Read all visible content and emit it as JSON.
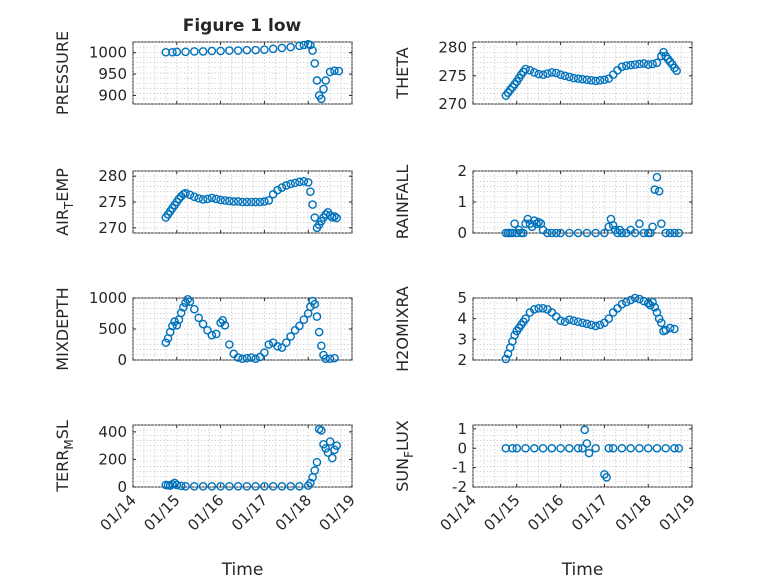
{
  "figure": {
    "title": "Figure 1 low",
    "marker_color": "#0072bd",
    "xlabel": "Time",
    "x_ticks": [
      {
        "value": 0,
        "label": "01/14"
      },
      {
        "value": 1,
        "label": "01/15"
      },
      {
        "value": 2,
        "label": "01/16"
      },
      {
        "value": 3,
        "label": "01/17"
      },
      {
        "value": 4,
        "label": "01/18"
      },
      {
        "value": 5,
        "label": "01/19"
      }
    ],
    "x_units": "days since 01/14",
    "xlim": [
      0,
      5
    ]
  },
  "chart_data": [
    {
      "type": "scatter",
      "id": "pressure",
      "ylabel": "PRESSURE",
      "ylim": [
        880,
        1025
      ],
      "yticks": [
        900,
        950,
        1000
      ],
      "ytick_labels": [
        "900",
        "950",
        "1000"
      ],
      "series": [
        {
          "name": "PRESSURE",
          "x": [
            0.75,
            0.9,
            1.0,
            1.2,
            1.4,
            1.6,
            1.8,
            2.0,
            2.2,
            2.4,
            2.6,
            2.8,
            3.0,
            3.2,
            3.4,
            3.6,
            3.8,
            3.9,
            4.0,
            4.05,
            4.1,
            4.15,
            4.2,
            4.25,
            4.3,
            4.35,
            4.4,
            4.5,
            4.6,
            4.7
          ],
          "y": [
            1001,
            1001,
            1002,
            1002,
            1003,
            1003,
            1004,
            1004,
            1005,
            1005,
            1006,
            1006,
            1007,
            1009,
            1011,
            1013,
            1016,
            1018,
            1020,
            1018,
            1005,
            975,
            935,
            900,
            892,
            915,
            935,
            955,
            958,
            957
          ]
        }
      ]
    },
    {
      "type": "scatter",
      "id": "theta",
      "ylabel": "THETA",
      "ylim": [
        270,
        281
      ],
      "yticks": [
        270,
        275,
        280
      ],
      "ytick_labels": [
        "270",
        "275",
        "280"
      ],
      "series": [
        {
          "name": "THETA",
          "x": [
            0.75,
            0.8,
            0.85,
            0.9,
            0.95,
            1.0,
            1.05,
            1.1,
            1.15,
            1.2,
            1.3,
            1.4,
            1.5,
            1.6,
            1.7,
            1.8,
            1.9,
            2.0,
            2.1,
            2.2,
            2.3,
            2.4,
            2.5,
            2.6,
            2.7,
            2.8,
            2.9,
            3.0,
            3.1,
            3.2,
            3.3,
            3.4,
            3.5,
            3.6,
            3.7,
            3.8,
            3.9,
            4.0,
            4.1,
            4.2,
            4.3,
            4.35,
            4.4,
            4.45,
            4.5,
            4.55,
            4.6,
            4.65
          ],
          "y": [
            271.5,
            272,
            272.5,
            273,
            273.5,
            274,
            274.6,
            275.2,
            275.7,
            276.2,
            276,
            275.6,
            275.3,
            275.2,
            275.4,
            275.6,
            275.5,
            275.2,
            275,
            274.8,
            274.6,
            274.5,
            274.4,
            274.3,
            274.2,
            274.1,
            274.2,
            274.3,
            274.5,
            275.2,
            276,
            276.6,
            276.8,
            276.9,
            277,
            277.1,
            277.2,
            277,
            277.1,
            277.3,
            278.5,
            279.2,
            278.5,
            278,
            277.5,
            277,
            276.4,
            275.9
          ]
        }
      ]
    },
    {
      "type": "scatter",
      "id": "air_temp",
      "ylabel": "AIR_TEMP",
      "ylim": [
        269,
        281
      ],
      "yticks": [
        270,
        275,
        280
      ],
      "ytick_labels": [
        "270",
        "275",
        "280"
      ],
      "series": [
        {
          "name": "AIR_TEMP",
          "x": [
            0.75,
            0.8,
            0.85,
            0.9,
            0.95,
            1.0,
            1.05,
            1.1,
            1.15,
            1.2,
            1.3,
            1.4,
            1.5,
            1.6,
            1.7,
            1.8,
            1.9,
            2.0,
            2.1,
            2.2,
            2.3,
            2.4,
            2.5,
            2.6,
            2.7,
            2.8,
            2.9,
            3.0,
            3.1,
            3.2,
            3.3,
            3.4,
            3.5,
            3.6,
            3.7,
            3.8,
            3.9,
            4.0,
            4.05,
            4.1,
            4.15,
            4.2,
            4.25,
            4.3,
            4.35,
            4.4,
            4.45,
            4.5,
            4.55,
            4.6,
            4.65
          ],
          "y": [
            272,
            272.6,
            273.2,
            273.8,
            274.4,
            275,
            275.6,
            276.1,
            276.5,
            276.7,
            276.4,
            276,
            275.7,
            275.5,
            275.6,
            275.8,
            275.6,
            275.4,
            275.3,
            275.2,
            275.1,
            275.1,
            275,
            275,
            275,
            275,
            275,
            275.1,
            275.3,
            276.5,
            277.3,
            277.8,
            278.2,
            278.5,
            278.7,
            278.9,
            279,
            278.8,
            277,
            274.5,
            272,
            270,
            270.6,
            271.3,
            272,
            272.6,
            273,
            272.4,
            272,
            272.2,
            271.9
          ]
        }
      ]
    },
    {
      "type": "scatter",
      "id": "rainfall",
      "ylabel": "RAINFALL",
      "ylim": [
        0,
        2
      ],
      "yticks": [
        0,
        1,
        2
      ],
      "ytick_labels": [
        "0",
        "1",
        "2"
      ],
      "series": [
        {
          "name": "RAINFALL",
          "x": [
            0.75,
            0.8,
            0.85,
            0.9,
            0.95,
            1.0,
            1.05,
            1.1,
            1.15,
            1.2,
            1.25,
            1.3,
            1.35,
            1.4,
            1.45,
            1.5,
            1.55,
            1.6,
            1.7,
            1.8,
            1.9,
            2.0,
            2.2,
            2.4,
            2.6,
            2.8,
            3.0,
            3.1,
            3.15,
            3.2,
            3.25,
            3.3,
            3.35,
            3.4,
            3.5,
            3.6,
            3.7,
            3.8,
            3.9,
            4.0,
            4.05,
            4.1,
            4.15,
            4.2,
            4.25,
            4.3,
            4.4,
            4.5,
            4.6,
            4.7
          ],
          "y": [
            0,
            0,
            0,
            0,
            0.3,
            0,
            0.1,
            0,
            0,
            0.3,
            0.45,
            0.3,
            0.2,
            0.4,
            0.3,
            0.35,
            0.3,
            0.1,
            0,
            0,
            0,
            0,
            0,
            0,
            0,
            0,
            0,
            0.2,
            0.45,
            0.25,
            0.1,
            0,
            0.1,
            0,
            0,
            0.1,
            0,
            0.3,
            0,
            0,
            0,
            0.2,
            1.4,
            1.8,
            1.35,
            0.3,
            0,
            0,
            0,
            0
          ]
        }
      ]
    },
    {
      "type": "scatter",
      "id": "mixdepth",
      "ylabel": "MIXDEPTH",
      "ylim": [
        0,
        1000
      ],
      "yticks": [
        0,
        500,
        1000
      ],
      "ytick_labels": [
        "0",
        "500",
        "1000"
      ],
      "series": [
        {
          "name": "MIXDEPTH",
          "x": [
            0.75,
            0.8,
            0.85,
            0.9,
            0.95,
            1.0,
            1.05,
            1.1,
            1.15,
            1.2,
            1.25,
            1.3,
            1.4,
            1.5,
            1.6,
            1.7,
            1.8,
            1.9,
            2.0,
            2.05,
            2.1,
            2.2,
            2.3,
            2.4,
            2.5,
            2.6,
            2.7,
            2.8,
            2.9,
            3.0,
            3.1,
            3.2,
            3.3,
            3.4,
            3.5,
            3.6,
            3.7,
            3.8,
            3.9,
            4.0,
            4.05,
            4.1,
            4.15,
            4.2,
            4.25,
            4.3,
            4.35,
            4.4,
            4.5,
            4.6
          ],
          "y": [
            280,
            350,
            450,
            550,
            620,
            560,
            650,
            760,
            850,
            920,
            980,
            940,
            820,
            680,
            580,
            480,
            400,
            420,
            600,
            640,
            560,
            250,
            100,
            40,
            20,
            30,
            40,
            20,
            50,
            120,
            250,
            280,
            220,
            200,
            280,
            380,
            480,
            550,
            650,
            750,
            860,
            950,
            900,
            700,
            450,
            230,
            80,
            20,
            20,
            30
          ]
        }
      ]
    },
    {
      "type": "scatter",
      "id": "h2omixra",
      "ylabel": "H2OMIXRA",
      "ylim": [
        2,
        5
      ],
      "yticks": [
        2,
        3,
        4,
        5
      ],
      "ytick_labels": [
        "2",
        "3",
        "4",
        "5"
      ],
      "series": [
        {
          "name": "H2OMIXRA",
          "x": [
            0.75,
            0.8,
            0.85,
            0.9,
            0.95,
            1.0,
            1.05,
            1.1,
            1.15,
            1.2,
            1.3,
            1.4,
            1.5,
            1.6,
            1.7,
            1.8,
            1.9,
            2.0,
            2.1,
            2.2,
            2.3,
            2.4,
            2.5,
            2.6,
            2.7,
            2.8,
            2.9,
            3.0,
            3.1,
            3.2,
            3.3,
            3.4,
            3.5,
            3.6,
            3.7,
            3.8,
            3.9,
            4.0,
            4.05,
            4.1,
            4.15,
            4.2,
            4.25,
            4.3,
            4.35,
            4.4,
            4.5,
            4.6
          ],
          "y": [
            2.05,
            2.3,
            2.6,
            2.9,
            3.2,
            3.4,
            3.55,
            3.7,
            3.85,
            4.0,
            4.3,
            4.45,
            4.5,
            4.5,
            4.45,
            4.3,
            4.1,
            3.9,
            3.85,
            3.95,
            3.9,
            3.85,
            3.8,
            3.75,
            3.7,
            3.65,
            3.7,
            3.8,
            4.0,
            4.3,
            4.5,
            4.7,
            4.8,
            4.9,
            5.0,
            4.95,
            4.85,
            4.75,
            4.65,
            4.8,
            4.55,
            4.3,
            4.0,
            3.8,
            3.4,
            3.45,
            3.55,
            3.5
          ]
        }
      ]
    },
    {
      "type": "scatter",
      "id": "terr_msl",
      "ylabel": "TERR_MSL",
      "ylim": [
        0,
        450
      ],
      "yticks": [
        0,
        200,
        400
      ],
      "ytick_labels": [
        "0",
        "200",
        "400"
      ],
      "series": [
        {
          "name": "TERR_MSL",
          "x": [
            0.75,
            0.8,
            0.85,
            0.9,
            0.95,
            1.0,
            1.1,
            1.2,
            1.4,
            1.6,
            1.8,
            2.0,
            2.2,
            2.4,
            2.6,
            2.8,
            3.0,
            3.2,
            3.4,
            3.6,
            3.8,
            4.0,
            4.05,
            4.1,
            4.15,
            4.2,
            4.25,
            4.3,
            4.35,
            4.4,
            4.45,
            4.5,
            4.55,
            4.6,
            4.65
          ],
          "y": [
            15,
            12,
            10,
            20,
            30,
            15,
            8,
            5,
            5,
            5,
            5,
            5,
            5,
            5,
            5,
            5,
            5,
            5,
            5,
            5,
            5,
            10,
            30,
            70,
            120,
            180,
            420,
            410,
            310,
            280,
            250,
            330,
            210,
            270,
            300
          ]
        }
      ]
    },
    {
      "type": "scatter",
      "id": "sun_flux",
      "ylabel": "SUN_FLUX",
      "ylim": [
        -2,
        1.2
      ],
      "yticks": [
        -2,
        -1,
        0,
        1
      ],
      "ytick_labels": [
        "-2",
        "-1",
        "0",
        "1"
      ],
      "series": [
        {
          "name": "SUN_FLUX",
          "x": [
            0.75,
            0.9,
            1.0,
            1.2,
            1.4,
            1.6,
            1.8,
            2.0,
            2.2,
            2.4,
            2.5,
            2.55,
            2.6,
            2.65,
            2.8,
            3.0,
            3.05,
            3.1,
            3.2,
            3.4,
            3.6,
            3.8,
            4.0,
            4.2,
            4.4,
            4.6,
            4.7
          ],
          "y": [
            0,
            0,
            0,
            0,
            0,
            0,
            0,
            0,
            0,
            0,
            0,
            0.95,
            0.25,
            -0.25,
            0,
            -1.35,
            -1.5,
            0,
            0,
            0,
            0,
            0,
            0,
            0,
            0,
            0,
            0
          ]
        }
      ]
    }
  ]
}
